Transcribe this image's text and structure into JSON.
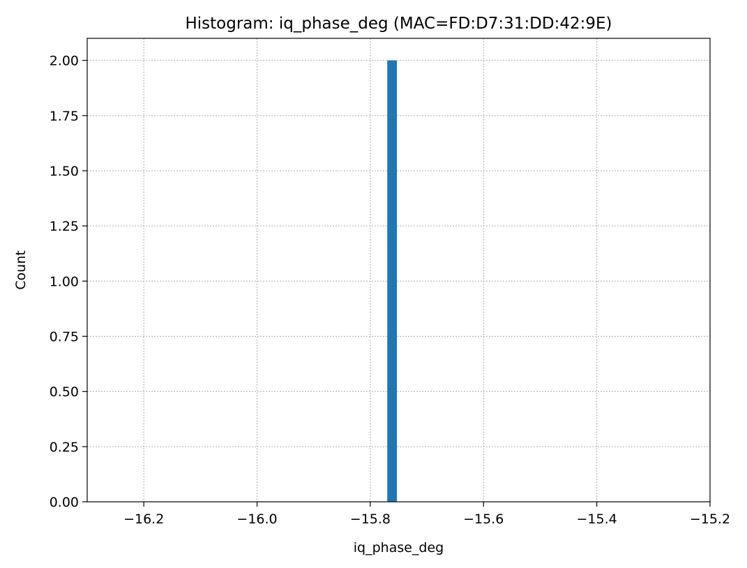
{
  "chart_data": {
    "type": "bar",
    "title": "Histogram: iq_phase_deg (MAC=FD:D7:31:DD:42:9E)",
    "xlabel": "iq_phase_deg",
    "ylabel": "Count",
    "xlim": [
      -16.3,
      -15.2
    ],
    "ylim": [
      0,
      2.1
    ],
    "xticks": [
      -16.2,
      -16.0,
      -15.8,
      -15.6,
      -15.4,
      -15.2
    ],
    "xtick_labels": [
      "−16.2",
      "−16.0",
      "−15.8",
      "−15.6",
      "−15.4",
      "−15.2"
    ],
    "yticks": [
      0,
      0.25,
      0.5,
      0.75,
      1.0,
      1.25,
      1.5,
      1.75,
      2.0
    ],
    "ytick_labels": [
      "0.00",
      "0.25",
      "0.50",
      "0.75",
      "1.00",
      "1.25",
      "1.50",
      "1.75",
      "2.00"
    ],
    "bins": [
      {
        "x0": -15.77,
        "x1": -15.753,
        "count": 2
      }
    ],
    "bar_color": "#1f77b4",
    "grid": true
  }
}
